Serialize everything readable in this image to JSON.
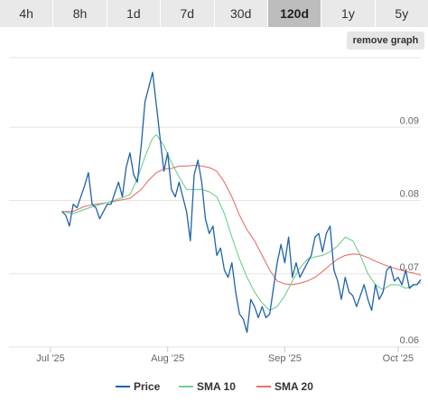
{
  "tabs": [
    {
      "label": "4h",
      "active": false
    },
    {
      "label": "8h",
      "active": false
    },
    {
      "label": "1d",
      "active": false
    },
    {
      "label": "7d",
      "active": false
    },
    {
      "label": "30d",
      "active": false
    },
    {
      "label": "120d",
      "active": true
    },
    {
      "label": "1y",
      "active": false
    },
    {
      "label": "5y",
      "active": false
    }
  ],
  "remove_graph_label": "remove graph",
  "chart_data": {
    "type": "line",
    "x_ticks": [
      "Jul '25",
      "Aug '25",
      "Sep '25",
      "Oct '25"
    ],
    "x_tick_days": [
      0,
      31,
      62,
      92
    ],
    "x_range_days": [
      -11,
      98
    ],
    "ylim": [
      0.06,
      0.1
    ],
    "y_ticks": [
      0.06,
      0.07,
      0.08,
      0.09
    ],
    "y_tick_labels": [
      "0.06",
      "0.07",
      "0.08",
      "0.09"
    ],
    "grid": true,
    "legend_position": "bottom",
    "series": [
      {
        "name": "Price",
        "color": "#1f63a8",
        "x": [
          3,
          4,
          5,
          6,
          7,
          8,
          9,
          10,
          11,
          12,
          13,
          14,
          15,
          16,
          17,
          18,
          19,
          20,
          21,
          22,
          23,
          24,
          25,
          26,
          27,
          28,
          29,
          30,
          31,
          32,
          33,
          34,
          35,
          36,
          37,
          38,
          39,
          40,
          41,
          42,
          43,
          44,
          45,
          46,
          47,
          48,
          49,
          50,
          51,
          52,
          53,
          54,
          55,
          56,
          57,
          58,
          59,
          60,
          61,
          62,
          63,
          64,
          65,
          66,
          67,
          68,
          69,
          70,
          71,
          72,
          73,
          74,
          75,
          76,
          77,
          78,
          79,
          80,
          81,
          82,
          83,
          84,
          85,
          86,
          87,
          88,
          89,
          90,
          91,
          92,
          93,
          94,
          95,
          96,
          97,
          98
        ],
        "y": [
          0.0785,
          0.078,
          0.0765,
          0.0795,
          0.079,
          0.0805,
          0.082,
          0.0838,
          0.0795,
          0.079,
          0.0775,
          0.0785,
          0.0795,
          0.0795,
          0.081,
          0.0825,
          0.0805,
          0.0845,
          0.0865,
          0.0835,
          0.0825,
          0.0875,
          0.0935,
          0.0955,
          0.0975,
          0.093,
          0.0885,
          0.084,
          0.0865,
          0.0815,
          0.0805,
          0.0825,
          0.0805,
          0.0785,
          0.0745,
          0.0835,
          0.0855,
          0.0825,
          0.0775,
          0.0755,
          0.0765,
          0.0725,
          0.0735,
          0.0705,
          0.0695,
          0.0715,
          0.0675,
          0.0645,
          0.0638,
          0.062,
          0.0665,
          0.0655,
          0.064,
          0.0655,
          0.064,
          0.0645,
          0.068,
          0.0715,
          0.074,
          0.0715,
          0.075,
          0.0695,
          0.0715,
          0.0695,
          0.0705,
          0.0715,
          0.0725,
          0.075,
          0.0755,
          0.073,
          0.0755,
          0.0765,
          0.0705,
          0.069,
          0.0665,
          0.0695,
          0.0675,
          0.067,
          0.0655,
          0.067,
          0.0685,
          0.0665,
          0.065,
          0.0685,
          0.0665,
          0.0675,
          0.0705,
          0.071,
          0.069,
          0.0695,
          0.0685,
          0.0705,
          0.068,
          0.0685,
          0.0685,
          0.0692
        ]
      },
      {
        "name": "SMA 10",
        "color": "#6fcf8f",
        "x": [
          3,
          6,
          9,
          12,
          15,
          18,
          21,
          23,
          25,
          27,
          28,
          30,
          32,
          34,
          36,
          38,
          40,
          42,
          44,
          46,
          48,
          50,
          52,
          54,
          56,
          58,
          60,
          62,
          64,
          66,
          68,
          70,
          72,
          74,
          76,
          78,
          80,
          82,
          84,
          86,
          88,
          90,
          92,
          94,
          96,
          98
        ],
        "y": [
          0.0785,
          0.0782,
          0.0788,
          0.0793,
          0.0797,
          0.0802,
          0.0808,
          0.083,
          0.086,
          0.0885,
          0.089,
          0.0875,
          0.0852,
          0.0832,
          0.0815,
          0.0815,
          0.0815,
          0.0812,
          0.0805,
          0.0782,
          0.075,
          0.072,
          0.0695,
          0.0675,
          0.066,
          0.065,
          0.0655,
          0.067,
          0.069,
          0.0708,
          0.072,
          0.0723,
          0.0725,
          0.073,
          0.0738,
          0.075,
          0.0745,
          0.0725,
          0.07,
          0.0685,
          0.0678,
          0.0685,
          0.0685,
          0.068,
          0.0684,
          0.0688
        ]
      },
      {
        "name": "SMA 20",
        "color": "#e8706c",
        "x": [
          3,
          6,
          9,
          12,
          15,
          18,
          21,
          24,
          26,
          28,
          30,
          32,
          34,
          36,
          38,
          40,
          42,
          44,
          46,
          48,
          50,
          52,
          54,
          56,
          58,
          60,
          62,
          64,
          66,
          68,
          70,
          72,
          74,
          76,
          78,
          80,
          82,
          84,
          86,
          88,
          90,
          92,
          94,
          96,
          98
        ],
        "y": [
          0.0785,
          0.0785,
          0.0792,
          0.0795,
          0.0797,
          0.08,
          0.0803,
          0.0815,
          0.0828,
          0.0838,
          0.0843,
          0.0844,
          0.0847,
          0.0847,
          0.0848,
          0.0847,
          0.0845,
          0.084,
          0.0825,
          0.0805,
          0.078,
          0.076,
          0.0745,
          0.0725,
          0.0705,
          0.069,
          0.0686,
          0.0685,
          0.0687,
          0.069,
          0.0695,
          0.0703,
          0.0712,
          0.072,
          0.0725,
          0.0727,
          0.0726,
          0.0722,
          0.0717,
          0.0713,
          0.0709,
          0.0706,
          0.0703,
          0.0701,
          0.0698
        ]
      }
    ]
  }
}
